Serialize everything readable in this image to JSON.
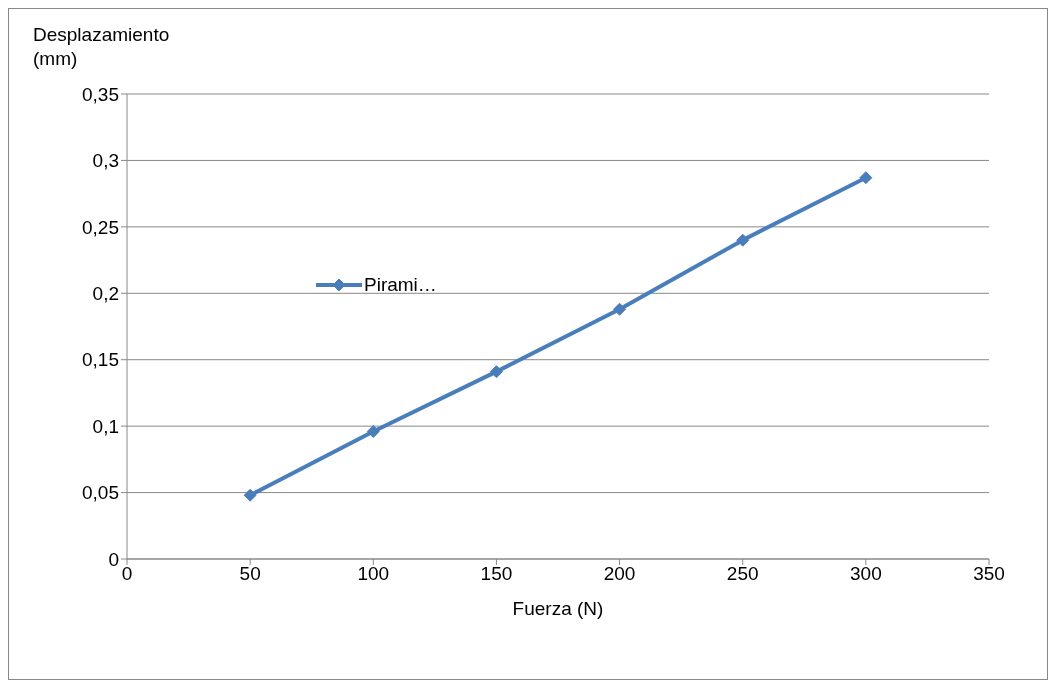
{
  "chart_data": {
    "type": "line",
    "xlabel": "Fuerza (N)",
    "ylabel": "Desplazamiento (mm)",
    "x": [
      50,
      100,
      150,
      200,
      250,
      300
    ],
    "series": [
      {
        "name": "Pirami…",
        "color": "#4a7ebb",
        "values": [
          0.048,
          0.096,
          0.141,
          0.188,
          0.24,
          0.287
        ]
      }
    ],
    "xlim": [
      0,
      350
    ],
    "xticks": [
      0,
      50,
      100,
      150,
      200,
      250,
      300,
      350
    ],
    "ylim": [
      0,
      0.35
    ],
    "yticks": [
      0,
      {
        "value": 0.05,
        "label": "0,05"
      },
      {
        "value": 0.1,
        "label": "0,1"
      },
      {
        "value": 0.15,
        "label": "0,15"
      },
      {
        "value": 0.2,
        "label": "0,2"
      },
      {
        "value": 0.25,
        "label": "0,25"
      },
      {
        "value": 0.3,
        "label": "0,3"
      },
      {
        "value": 0.35,
        "label": "0,35"
      }
    ],
    "grid": "y",
    "legend": "left",
    "marker": "diamond",
    "line_style": "solid"
  }
}
